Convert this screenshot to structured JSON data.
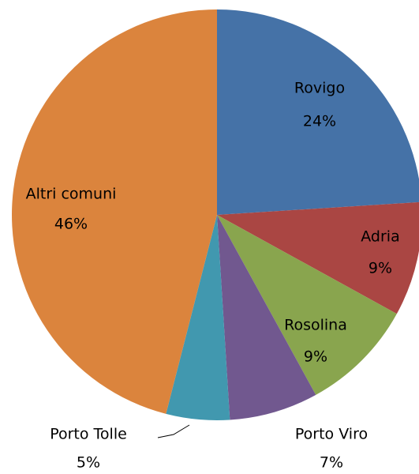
{
  "chart_data": {
    "type": "pie",
    "categories": [
      "Rovigo",
      "Adria",
      "Rosolina",
      "Porto Viro",
      "Porto Tolle",
      "Altri comuni"
    ],
    "values": [
      24,
      9,
      9,
      7,
      5,
      46
    ],
    "value_labels": [
      "24%",
      "9%",
      "9%",
      "7%",
      "5%",
      "46%"
    ],
    "colors": [
      "#4572a7",
      "#aa4643",
      "#89a54e",
      "#71588f",
      "#4198af",
      "#db843d"
    ]
  }
}
